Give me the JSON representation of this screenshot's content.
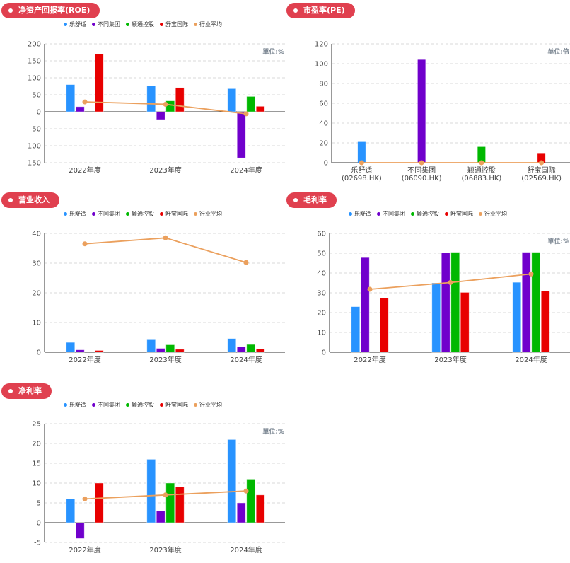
{
  "legend": [
    {
      "name": "乐舒适",
      "color": "#2893ff"
    },
    {
      "name": "不同集团",
      "color": "#7000cc"
    },
    {
      "name": "颖通控股",
      "color": "#00b800"
    },
    {
      "name": "舒宝国际",
      "color": "#e80000"
    },
    {
      "name": "行业平均",
      "color": "#eba05d"
    }
  ],
  "chart_data": [
    {
      "id": "roe",
      "title": "净资产回报率(ROE)",
      "type": "bar",
      "unit": "單位:%",
      "categories": [
        "2022年度",
        "2023年度",
        "2024年度"
      ],
      "ylim": [
        -150,
        200
      ],
      "yticks": [
        200,
        150,
        100,
        50,
        0,
        -50,
        -100,
        -150
      ],
      "series": [
        {
          "name": "乐舒适",
          "values": [
            80,
            76,
            68
          ]
        },
        {
          "name": "不同集团",
          "values": [
            15,
            -23,
            -136
          ]
        },
        {
          "name": "颖通控股",
          "values": [
            null,
            32,
            45
          ]
        },
        {
          "name": "舒宝国际",
          "values": [
            170,
            71,
            16
          ]
        }
      ],
      "line": {
        "name": "行业平均",
        "values": [
          29,
          22,
          -6
        ]
      },
      "legend_position": "top-center",
      "grid": true
    },
    {
      "id": "pe",
      "title": "市盈率(PE)",
      "type": "bar",
      "unit": "单位:倍",
      "categories": [
        "乐舒适\n(02698.HK)",
        "不同集团\n(06090.HK)",
        "颖通控股\n(06883.HK)",
        "舒宝国际\n(02569.HK)"
      ],
      "ylim": [
        0,
        120
      ],
      "yticks": [
        120,
        100,
        80,
        60,
        40,
        20,
        0
      ],
      "bars": [
        21,
        104,
        16,
        9
      ],
      "bar_colors": [
        "#2893ff",
        "#7000cc",
        "#00b800",
        "#e80000"
      ],
      "line": {
        "name": "行业平均",
        "values": [
          0,
          0,
          0,
          0
        ]
      },
      "grid": true
    },
    {
      "id": "revenue",
      "title": "营业收入",
      "type": "bar",
      "unit": "",
      "categories": [
        "2022年度",
        "2023年度",
        "2024年度"
      ],
      "ylim": [
        0,
        40
      ],
      "yticks": [
        40,
        30,
        20,
        10,
        0
      ],
      "series": [
        {
          "name": "乐舒适",
          "values": [
            3.3,
            4.2,
            4.6
          ]
        },
        {
          "name": "不同集团",
          "values": [
            0.8,
            1.3,
            1.8
          ]
        },
        {
          "name": "颖通控股",
          "values": [
            null,
            2.5,
            2.6
          ]
        },
        {
          "name": "舒宝国际",
          "values": [
            0.6,
            1.0,
            1.1
          ]
        }
      ],
      "line": {
        "name": "行业平均",
        "values": [
          36.5,
          38.5,
          30.2
        ]
      },
      "legend_position": "top-center",
      "grid": true
    },
    {
      "id": "gross",
      "title": "毛利率",
      "type": "bar",
      "unit": "單位:%",
      "categories": [
        "2022年度",
        "2023年度",
        "2024年度"
      ],
      "ylim": [
        0,
        60
      ],
      "yticks": [
        60,
        50,
        40,
        30,
        20,
        10,
        0
      ],
      "series": [
        {
          "name": "乐舒适",
          "values": [
            23,
            35,
            35.3
          ]
        },
        {
          "name": "不同集团",
          "values": [
            47.8,
            50.2,
            50.5
          ]
        },
        {
          "name": "颖通控股",
          "values": [
            null,
            50.5,
            50.5
          ]
        },
        {
          "name": "舒宝国际",
          "values": [
            27.3,
            30.2,
            30.9
          ]
        }
      ],
      "line": {
        "name": "行业平均",
        "values": [
          31.8,
          35.2,
          39.5
        ]
      },
      "legend_position": "top-center",
      "grid": true
    },
    {
      "id": "net",
      "title": "净利率",
      "type": "bar",
      "unit": "單位:%",
      "categories": [
        "2022年度",
        "2023年度",
        "2024年度"
      ],
      "ylim": [
        -5,
        25
      ],
      "yticks": [
        25,
        20,
        15,
        10,
        5,
        0,
        -5
      ],
      "series": [
        {
          "name": "乐舒适",
          "values": [
            6,
            16,
            21
          ]
        },
        {
          "name": "不同集团",
          "values": [
            -4,
            3,
            5
          ]
        },
        {
          "name": "颖通控股",
          "values": [
            null,
            10,
            11
          ]
        },
        {
          "name": "舒宝国际",
          "values": [
            10,
            9,
            7
          ]
        }
      ],
      "line": {
        "name": "行业平均",
        "values": [
          6,
          7,
          8
        ]
      },
      "legend_position": "top-center",
      "grid": true
    }
  ]
}
